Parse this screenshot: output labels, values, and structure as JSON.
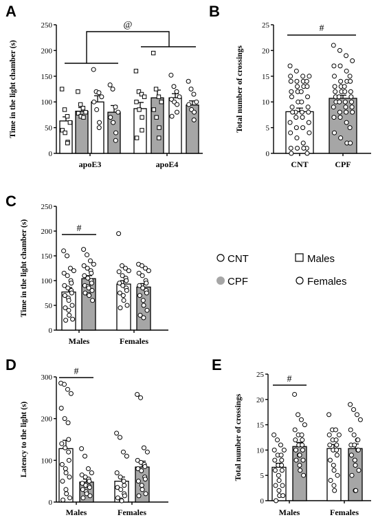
{
  "colors": {
    "cnt_fill": "#ffffff",
    "cpf_fill": "#a6a6a6",
    "stroke": "#000000"
  },
  "legend": {
    "cnt": "CNT",
    "cpf": "CPF",
    "males": "Males",
    "females": "Females"
  },
  "chart_data": [
    {
      "panel": "A",
      "type": "bar",
      "ylabel": "Time in the light chamber (s)",
      "ylim": [
        0,
        250
      ],
      "yticks": [
        0,
        50,
        100,
        150,
        200,
        250
      ],
      "groups": [
        "apoE3",
        "apoE4"
      ],
      "annotation": "@",
      "bars": [
        {
          "group": "apoE3",
          "fill": "cnt",
          "sex": "male",
          "mean": 63,
          "sem": 8,
          "points": [
            125,
            85,
            72,
            60,
            45,
            40,
            22,
            20
          ]
        },
        {
          "group": "apoE3",
          "fill": "cpf",
          "sex": "male",
          "mean": 82,
          "sem": 7,
          "points": [
            120,
            95,
            88,
            80,
            78,
            72,
            70
          ]
        },
        {
          "group": "apoE3",
          "fill": "cnt",
          "sex": "female",
          "mean": 100,
          "sem": 12,
          "points": [
            163,
            120,
            118,
            110,
            100,
            85,
            60,
            50
          ]
        },
        {
          "group": "apoE3",
          "fill": "cpf",
          "sex": "female",
          "mean": 80,
          "sem": 13,
          "points": [
            133,
            125,
            90,
            80,
            70,
            60,
            40,
            25
          ]
        },
        {
          "group": "apoE4",
          "fill": "cnt",
          "sex": "male",
          "mean": 87,
          "sem": 12,
          "points": [
            160,
            120,
            115,
            110,
            100,
            85,
            70,
            45,
            30
          ]
        },
        {
          "group": "apoE4",
          "fill": "cpf",
          "sex": "male",
          "mean": 108,
          "sem": 15,
          "points": [
            195,
            125,
            110,
            100,
            85,
            70,
            50,
            30
          ]
        },
        {
          "group": "apoE4",
          "fill": "cnt",
          "sex": "female",
          "mean": 108,
          "sem": 8,
          "points": [
            152,
            130,
            120,
            110,
            105,
            100,
            95,
            80,
            72
          ]
        },
        {
          "group": "apoE4",
          "fill": "cpf",
          "sex": "female",
          "mean": 94,
          "sem": 8,
          "points": [
            140,
            125,
            115,
            100,
            95,
            85,
            80,
            65
          ]
        }
      ]
    },
    {
      "panel": "B",
      "type": "bar",
      "ylabel": "Total number of crossings",
      "ylim": [
        0,
        25
      ],
      "yticks": [
        0,
        5,
        10,
        15,
        20,
        25
      ],
      "categories": [
        "CNT",
        "CPF"
      ],
      "annotation": "#",
      "bars": [
        {
          "category": "CNT",
          "fill": "cnt",
          "mean": 8.1,
          "sem": 0.7,
          "points": [
            17,
            16,
            15,
            15,
            15,
            14,
            14,
            14,
            14,
            13,
            13,
            13,
            12,
            12,
            12,
            11,
            11,
            10,
            10,
            9,
            9,
            8,
            8,
            8,
            8,
            7,
            7,
            6,
            6,
            5,
            5,
            4,
            4,
            3,
            2,
            1,
            1,
            1,
            1,
            0,
            0
          ]
        },
        {
          "category": "CPF",
          "fill": "cpf",
          "mean": 10.7,
          "sem": 0.6,
          "points": [
            21,
            20,
            19,
            18,
            17,
            17,
            16,
            15,
            15,
            14,
            14,
            14,
            13,
            13,
            13,
            12,
            12,
            12,
            12,
            11,
            11,
            11,
            10,
            10,
            10,
            10,
            9,
            9,
            9,
            8,
            8,
            8,
            7,
            7,
            6,
            5,
            4,
            3,
            2,
            2
          ]
        }
      ]
    },
    {
      "panel": "C",
      "type": "bar",
      "ylabel": "Time in the light chamber (s)",
      "ylim": [
        0,
        250
      ],
      "yticks": [
        0,
        50,
        100,
        150,
        200,
        250
      ],
      "categories": [
        "Males",
        "Females"
      ],
      "annotation": "#",
      "bars": [
        {
          "category": "Males",
          "fill": "cnt",
          "mean": 77,
          "sem": 9,
          "points": [
            160,
            150,
            125,
            120,
            115,
            110,
            100,
            95,
            90,
            85,
            80,
            75,
            70,
            65,
            60,
            50,
            45,
            40,
            30,
            22,
            20
          ]
        },
        {
          "category": "Males",
          "fill": "cpf",
          "mean": 104,
          "sem": 6,
          "points": [
            163,
            152,
            140,
            133,
            130,
            125,
            120,
            115,
            110,
            105,
            100,
            95,
            90,
            88,
            85,
            80,
            75,
            72,
            70,
            60
          ]
        },
        {
          "category": "Females",
          "fill": "cnt",
          "mean": 93,
          "sem": 7,
          "points": [
            195,
            130,
            125,
            120,
            118,
            110,
            105,
            100,
            95,
            90,
            85,
            80,
            75,
            70,
            60,
            50,
            45
          ]
        },
        {
          "category": "Females",
          "fill": "cpf",
          "mean": 87,
          "sem": 7,
          "points": [
            133,
            130,
            125,
            120,
            115,
            110,
            100,
            95,
            90,
            85,
            80,
            75,
            70,
            60,
            50,
            40,
            30,
            25
          ]
        }
      ]
    },
    {
      "panel": "D",
      "type": "bar",
      "ylabel": "Latency to the light (s)",
      "ylim": [
        0,
        300
      ],
      "yticks": [
        0,
        100,
        200,
        300
      ],
      "categories": [
        "Males",
        "Females"
      ],
      "annotation": "#",
      "bars": [
        {
          "category": "Males",
          "fill": "cnt",
          "mean": 128,
          "sem": 20,
          "points": [
            285,
            282,
            270,
            260,
            225,
            200,
            190,
            150,
            140,
            130,
            120,
            100,
            90,
            80,
            70,
            60,
            50,
            30,
            20,
            10,
            5
          ]
        },
        {
          "category": "Males",
          "fill": "cpf",
          "mean": 48,
          "sem": 7,
          "points": [
            128,
            110,
            80,
            70,
            65,
            60,
            55,
            50,
            45,
            40,
            38,
            35,
            30,
            25,
            20,
            15,
            10
          ]
        },
        {
          "category": "Females",
          "fill": "cnt",
          "mean": 50,
          "sem": 10,
          "points": [
            165,
            155,
            120,
            110,
            70,
            60,
            50,
            40,
            35,
            30,
            20,
            15,
            10,
            5,
            3
          ]
        },
        {
          "category": "Females",
          "fill": "cpf",
          "mean": 84,
          "sem": 14,
          "points": [
            258,
            250,
            130,
            120,
            100,
            95,
            90,
            85,
            80,
            75,
            60,
            55,
            50,
            40,
            30,
            20,
            15
          ]
        }
      ]
    },
    {
      "panel": "E",
      "type": "bar",
      "ylabel": "Total number of crossings",
      "ylim": [
        0,
        25
      ],
      "yticks": [
        0,
        5,
        10,
        15,
        20,
        25
      ],
      "categories": [
        "Males",
        "Females"
      ],
      "annotation": "#",
      "bars": [
        {
          "category": "Males",
          "fill": "cnt",
          "mean": 6.6,
          "sem": 0.8,
          "points": [
            13,
            12,
            11,
            10,
            10,
            9,
            9,
            8,
            8,
            7,
            7,
            6,
            6,
            5,
            4,
            3,
            3,
            2,
            1,
            1,
            0
          ]
        },
        {
          "category": "Males",
          "fill": "cpf",
          "mean": 10.7,
          "sem": 0.8,
          "points": [
            21,
            17,
            16,
            15,
            14,
            13,
            13,
            12,
            12,
            11,
            11,
            10,
            10,
            9,
            9,
            8,
            8,
            7,
            6,
            5
          ]
        },
        {
          "category": "Females",
          "fill": "cnt",
          "mean": 10.3,
          "sem": 0.8,
          "points": [
            17,
            14,
            14,
            13,
            13,
            12,
            12,
            11,
            11,
            10,
            10,
            9,
            8,
            7,
            6,
            5,
            4,
            3,
            2
          ]
        },
        {
          "category": "Females",
          "fill": "cpf",
          "mean": 10.3,
          "sem": 0.9,
          "points": [
            19,
            18,
            17,
            16,
            14,
            13,
            12,
            12,
            11,
            11,
            10,
            10,
            9,
            8,
            7,
            6,
            5,
            2,
            2
          ]
        }
      ]
    }
  ]
}
